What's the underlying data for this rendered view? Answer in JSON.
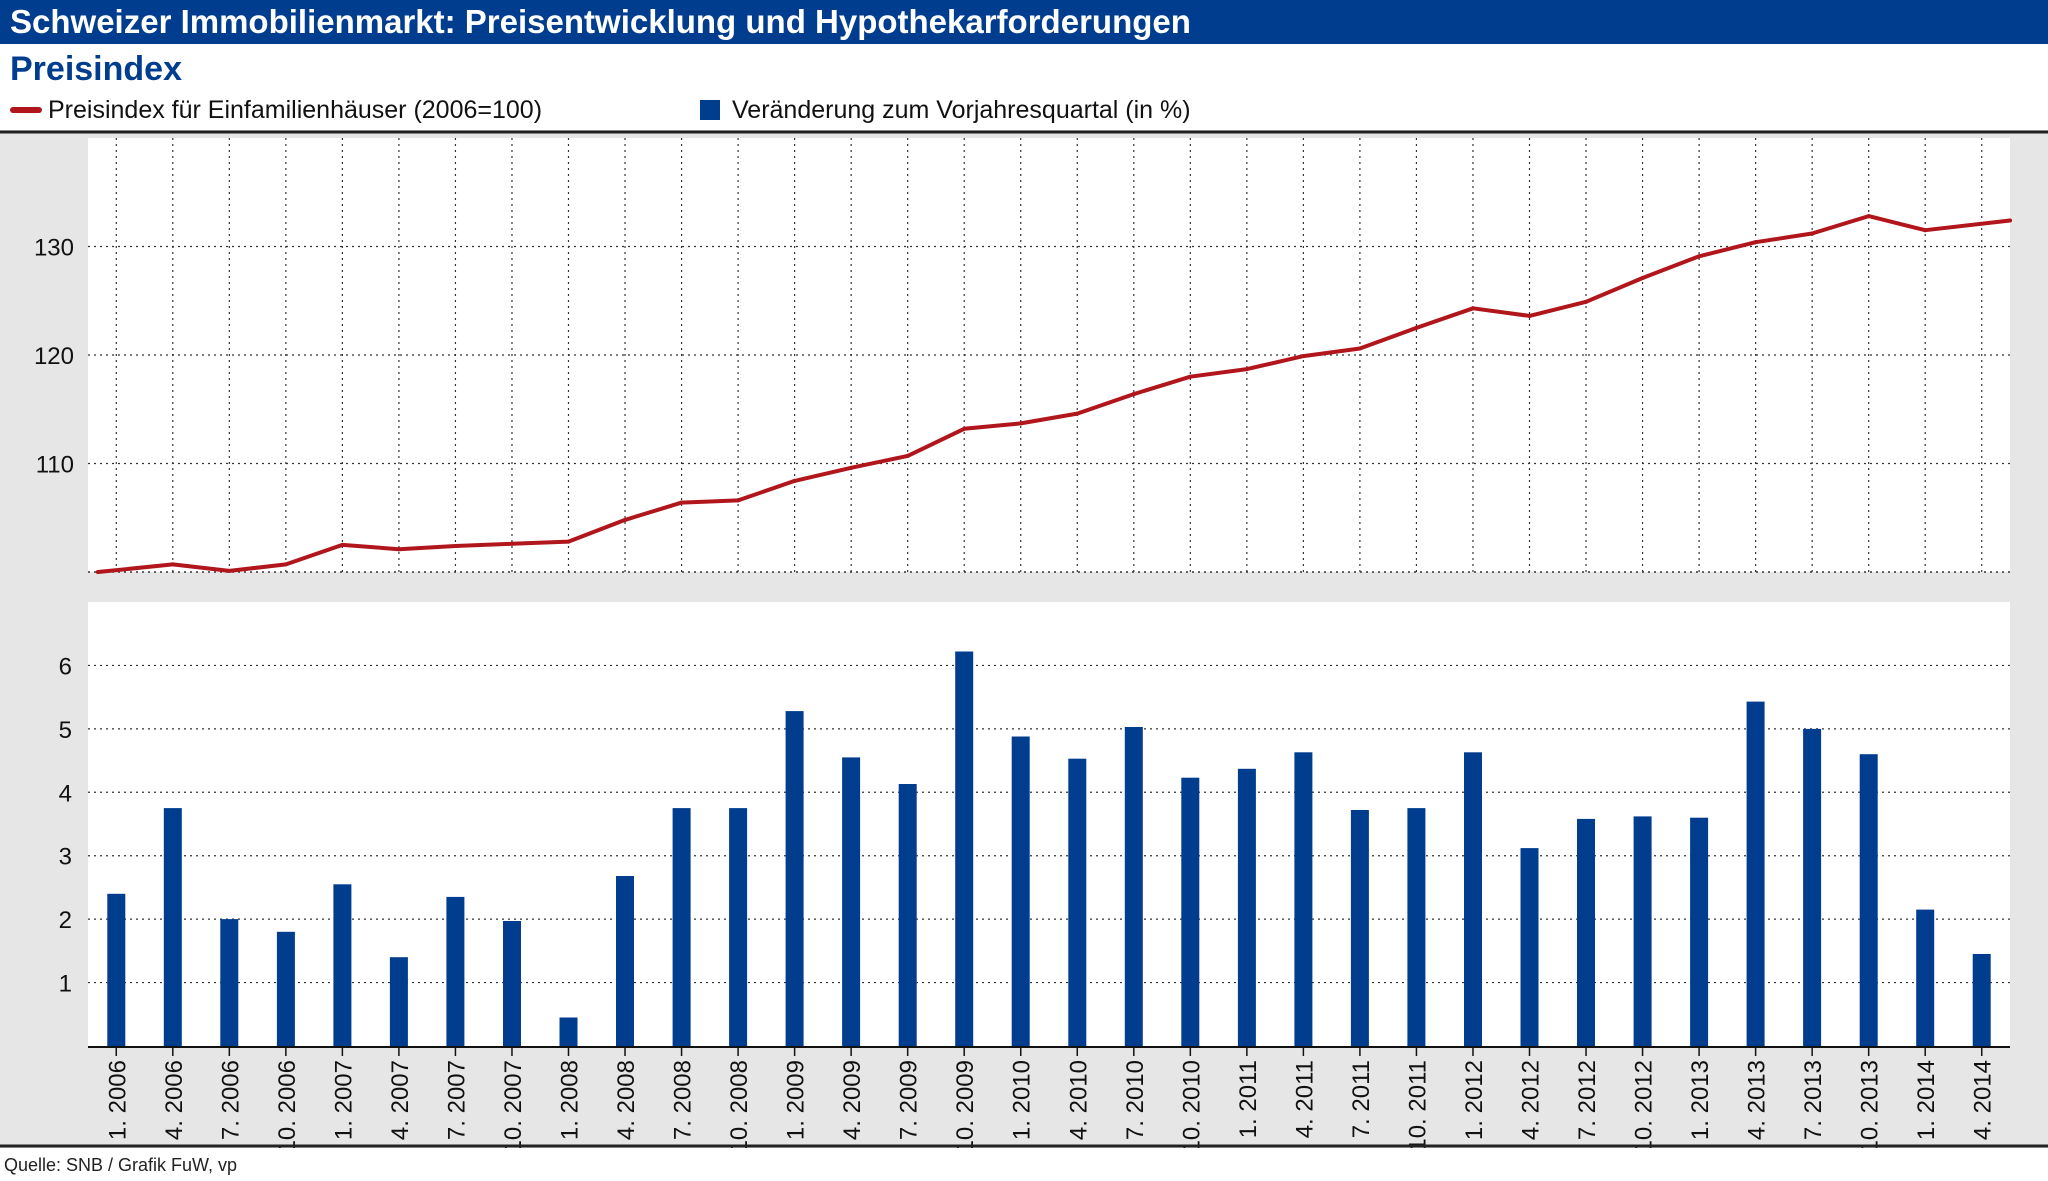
{
  "header": {
    "title": "Schweizer Immobilienmarkt: Preisentwicklung und Hypothekarforderungen",
    "subtitle": "Preisindex",
    "source": "Quelle: SNB / Grafik FuW, vp"
  },
  "colors": {
    "header_bg": "#003d8f",
    "line": "#b0161c",
    "bar": "#003d8f",
    "panel_bg": "#e6e6e6"
  },
  "chart_data": [
    {
      "type": "line",
      "series": [
        {
          "name": "Preisindex für Einfamilienhäuser (2006=100)",
          "values": [
            100,
            100.7,
            100.1,
            100.7,
            102.5,
            102.1,
            102.4,
            102.6,
            102.8,
            104.8,
            106.4,
            106.6,
            108.4,
            109.6,
            110.7,
            113.2,
            113.7,
            114.6,
            116.4,
            118.0,
            118.7,
            119.9,
            120.6,
            122.5,
            124.3,
            123.6,
            124.9,
            127.1,
            129.1,
            130.4,
            131.2,
            132.8,
            131.5,
            132.4
          ]
        }
      ],
      "categories": [
        "1. 2006",
        "4. 2006",
        "7. 2006",
        "10. 2006",
        "1. 2007",
        "4. 2007",
        "7. 2007",
        "10. 2007",
        "1. 2008",
        "4. 2008",
        "7. 2008",
        "10. 2008",
        "1. 2009",
        "4. 2009",
        "7. 2009",
        "10. 2009",
        "1. 2010",
        "4. 2010",
        "7. 2010",
        "10. 2010",
        "1. 2011",
        "4. 2011",
        "7. 2011",
        "10. 2011",
        "1. 2012",
        "4. 2012",
        "7. 2012",
        "10. 2012",
        "1. 2013",
        "4. 2013",
        "7. 2013",
        "10. 2013",
        "1. 2014",
        "4. 2014"
      ],
      "yticks": [
        110,
        120,
        130
      ],
      "ylim": [
        100,
        140
      ],
      "grid": true
    },
    {
      "type": "bar",
      "series": [
        {
          "name": "Veränderung zum Vorjahresquartal (in %)",
          "values": [
            2.4,
            3.75,
            2.0,
            1.8,
            2.55,
            1.4,
            2.35,
            1.97,
            0.45,
            2.68,
            3.75,
            3.75,
            5.28,
            4.55,
            4.13,
            6.22,
            4.88,
            4.53,
            5.03,
            4.23,
            4.37,
            4.63,
            3.72,
            3.75,
            4.63,
            3.12,
            3.58,
            3.62,
            3.6,
            5.43,
            5.0,
            4.6,
            2.15,
            1.45
          ]
        }
      ],
      "categories": [
        "1. 2006",
        "4. 2006",
        "7. 2006",
        "10. 2006",
        "1. 2007",
        "4. 2007",
        "7. 2007",
        "10. 2007",
        "1. 2008",
        "4. 2008",
        "7. 2008",
        "10. 2008",
        "1. 2009",
        "4. 2009",
        "7. 2009",
        "10. 2009",
        "1. 2010",
        "4. 2010",
        "7. 2010",
        "10. 2010",
        "1. 2011",
        "4. 2011",
        "7. 2011",
        "10. 2011",
        "1. 2012",
        "4. 2012",
        "7. 2012",
        "10. 2012",
        "1. 2013",
        "4. 2013",
        "7. 2013",
        "10. 2013",
        "1. 2014",
        "4. 2014"
      ],
      "yticks": [
        1,
        2,
        3,
        4,
        5,
        6
      ],
      "ylim": [
        0,
        7
      ],
      "grid": true
    }
  ]
}
